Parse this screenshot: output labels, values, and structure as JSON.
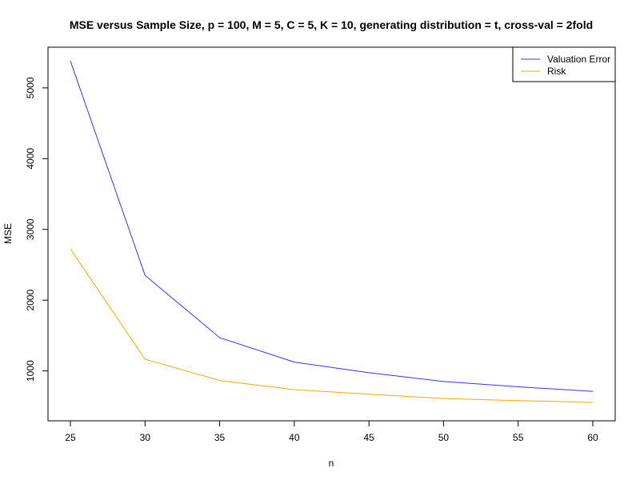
{
  "chart_data": {
    "type": "line",
    "title": "MSE versus Sample Size, p = 100, M = 5, C = 5, K = 10, generating distribution = t, cross-val = 2fold",
    "xlabel": "n",
    "ylabel": "MSE",
    "x": [
      25,
      30,
      35,
      40,
      45,
      50,
      55,
      60
    ],
    "xlim": [
      23.5,
      61.5
    ],
    "ylim": [
      295,
      5575
    ],
    "xticks": [
      25,
      30,
      35,
      40,
      45,
      50,
      55,
      60
    ],
    "yticks": [
      1000,
      2000,
      3000,
      4000,
      5000
    ],
    "legend_position": "top-right",
    "series": [
      {
        "name": "Valuation Error",
        "color": "#3333ff",
        "values": [
          5380,
          2350,
          1470,
          1125,
          975,
          850,
          775,
          710
        ]
      },
      {
        "name": "Risk",
        "color": "#ffa500",
        "values": [
          2725,
          1165,
          865,
          735,
          670,
          610,
          580,
          555
        ]
      }
    ]
  }
}
